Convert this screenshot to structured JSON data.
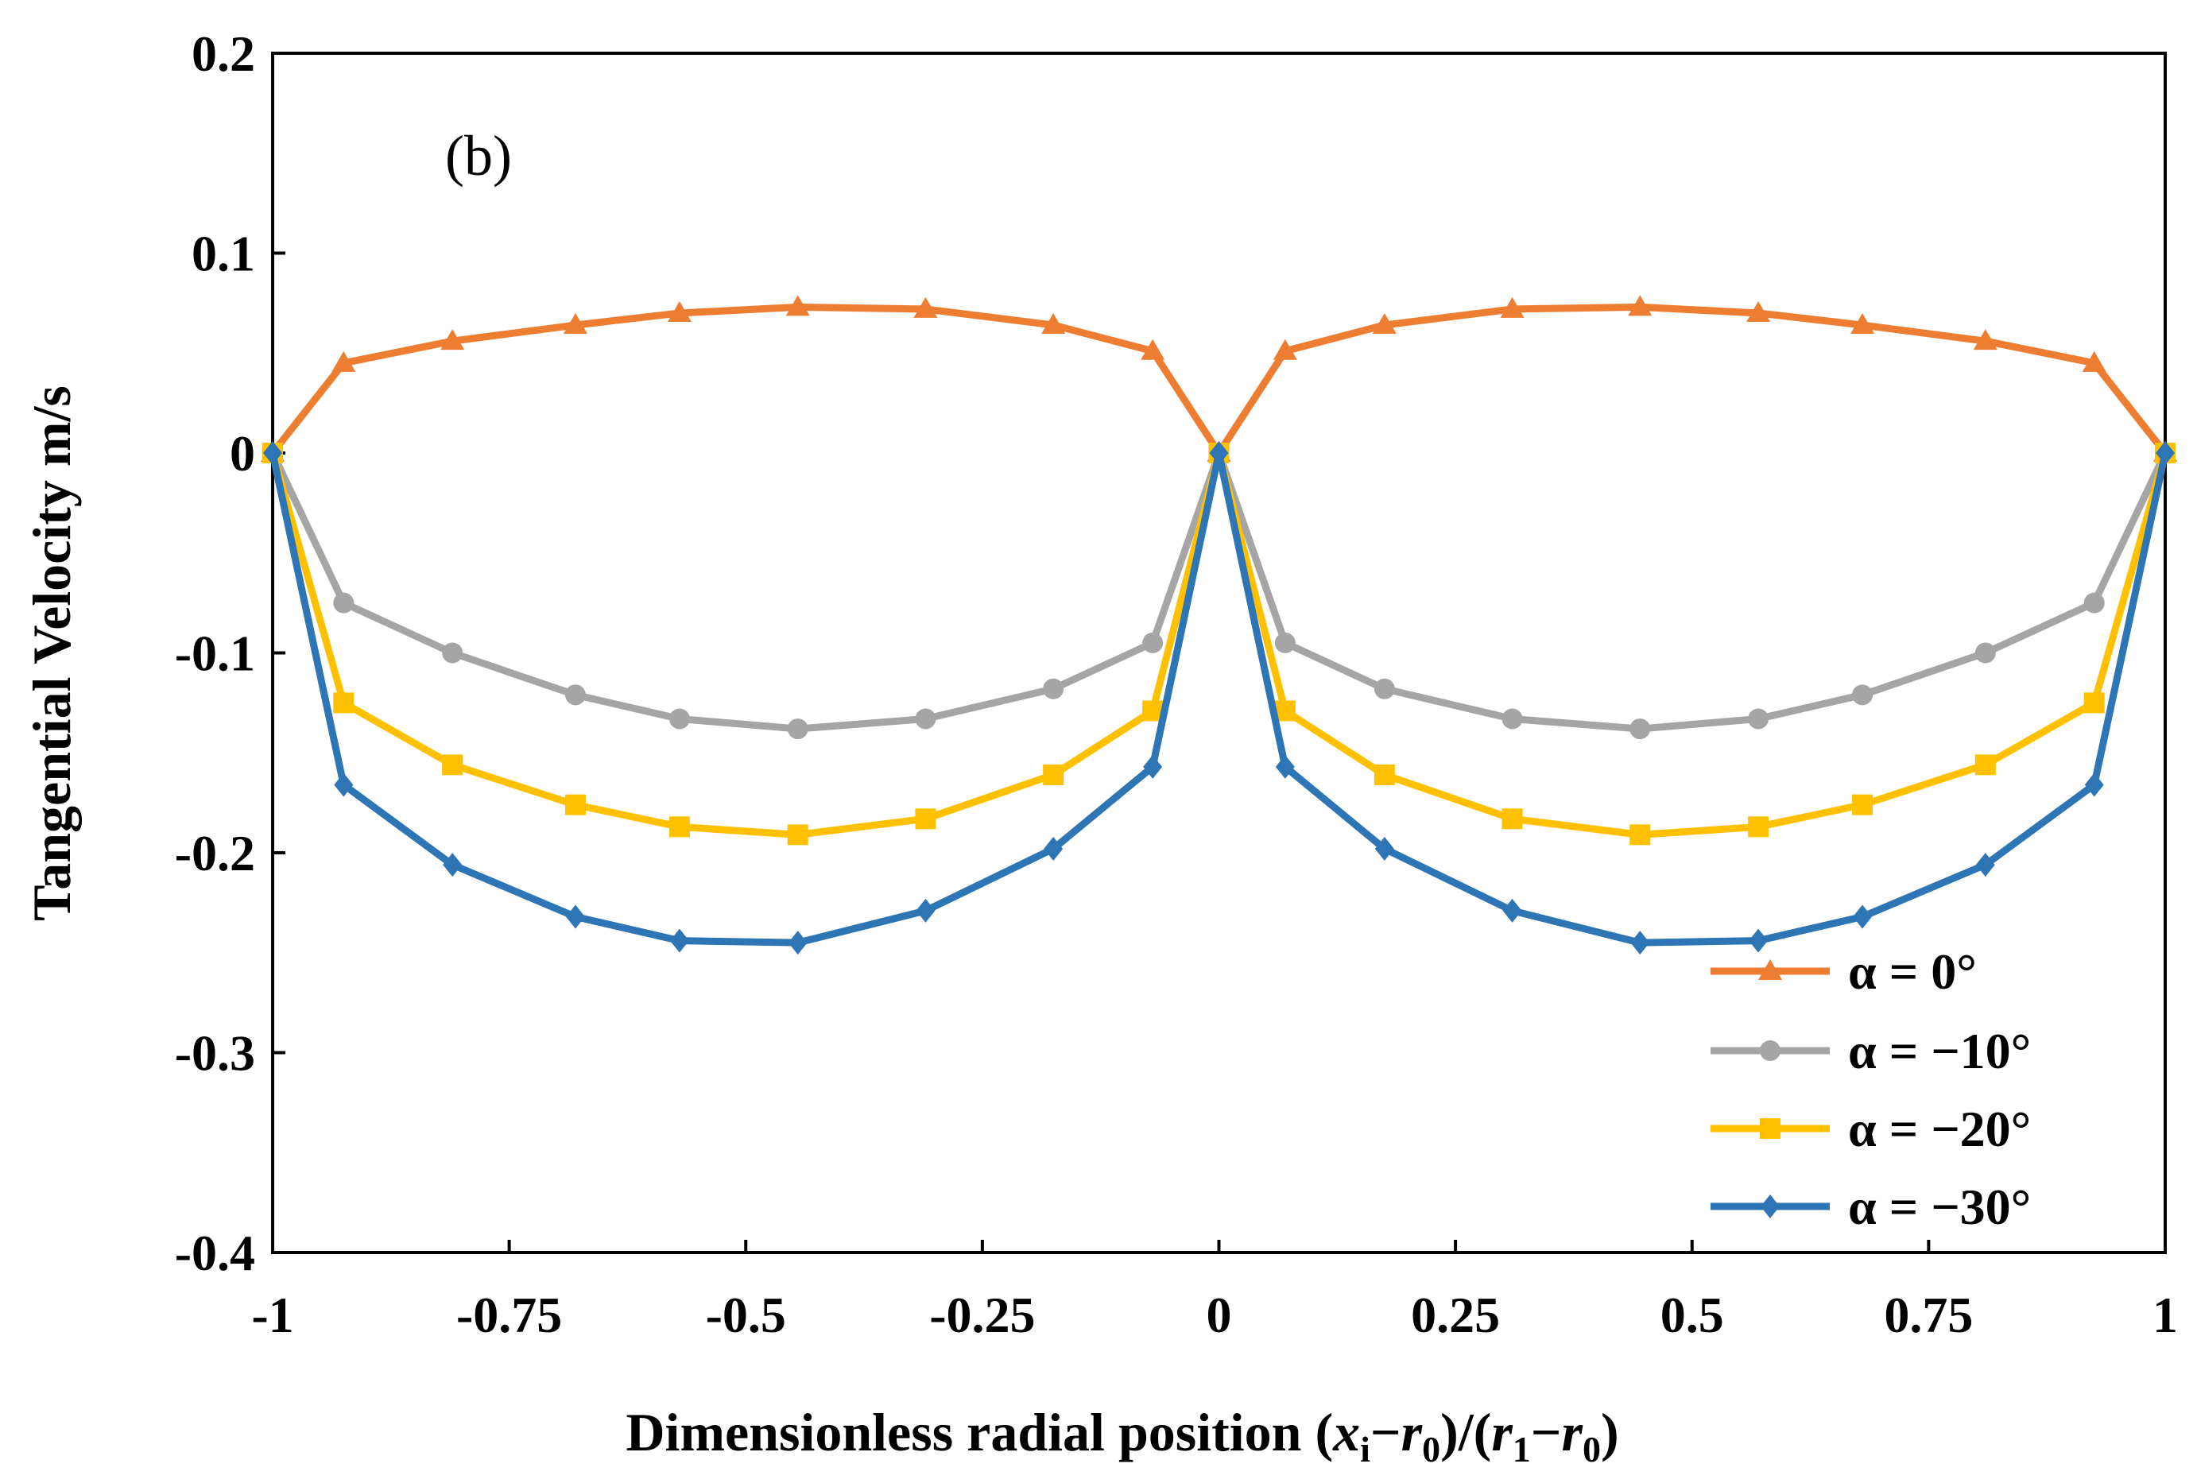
{
  "chart_data": {
    "type": "line",
    "title": "",
    "annotation": "(b)",
    "ylabel": "Tangential Velocity m/s",
    "xlabel": {
      "prefix": "Dimensionless radial position (",
      "x": "x",
      "x_sub": "i",
      "minus1": "−",
      "r": "r",
      "r0_sub": "0",
      "mid": ")/(",
      "r1_sub": "1",
      "suffix": ")"
    },
    "xlim": [
      -1,
      1
    ],
    "ylim": [
      -0.4,
      0.2
    ],
    "xticks": [
      -1,
      -0.75,
      -0.5,
      -0.25,
      0,
      0.25,
      0.5,
      0.75,
      1
    ],
    "xtick_labels": [
      "-1",
      "-0.75",
      "-0.5",
      "-0.25",
      "0",
      "0.25",
      "0.5",
      "0.75",
      "1"
    ],
    "yticks": [
      0.2,
      0.1,
      0,
      -0.1,
      -0.2,
      -0.3,
      -0.4
    ],
    "ytick_labels": [
      "0.2",
      "0.1",
      "0",
      "-0.1",
      "-0.2",
      "-0.3",
      "-0.4"
    ],
    "grid": false,
    "legend_position": "bottom-right",
    "x": [
      -1,
      -0.925,
      -0.81,
      -0.68,
      -0.57,
      -0.445,
      -0.31,
      -0.175,
      -0.07,
      0,
      0.07,
      0.175,
      0.31,
      0.445,
      0.57,
      0.68,
      0.81,
      0.925,
      1
    ],
    "series": [
      {
        "name": "α = 0°",
        "color": "#ED7D31",
        "marker": "triangle",
        "values": [
          0,
          0.045,
          0.056,
          0.064,
          0.07,
          0.073,
          0.072,
          0.064,
          0.051,
          0,
          0.051,
          0.064,
          0.072,
          0.073,
          0.07,
          0.064,
          0.056,
          0.045,
          0
        ]
      },
      {
        "name": "α = −10°",
        "color": "#A5A5A5",
        "marker": "circle",
        "values": [
          0,
          -0.075,
          -0.1,
          -0.121,
          -0.133,
          -0.138,
          -0.133,
          -0.118,
          -0.095,
          0,
          -0.095,
          -0.118,
          -0.133,
          -0.138,
          -0.133,
          -0.121,
          -0.1,
          -0.075,
          0
        ]
      },
      {
        "name": "α = −20°",
        "color": "#FFC000",
        "marker": "square",
        "values": [
          0,
          -0.125,
          -0.156,
          -0.176,
          -0.187,
          -0.191,
          -0.183,
          -0.161,
          -0.129,
          0,
          -0.129,
          -0.161,
          -0.183,
          -0.191,
          -0.187,
          -0.176,
          -0.156,
          -0.125,
          0
        ]
      },
      {
        "name": "α = −30°",
        "color": "#2E75B6",
        "marker": "diamond",
        "values": [
          0,
          -0.166,
          -0.206,
          -0.232,
          -0.244,
          -0.245,
          -0.229,
          -0.198,
          -0.157,
          0,
          -0.157,
          -0.198,
          -0.229,
          -0.245,
          -0.244,
          -0.232,
          -0.206,
          -0.166,
          0
        ]
      }
    ]
  }
}
